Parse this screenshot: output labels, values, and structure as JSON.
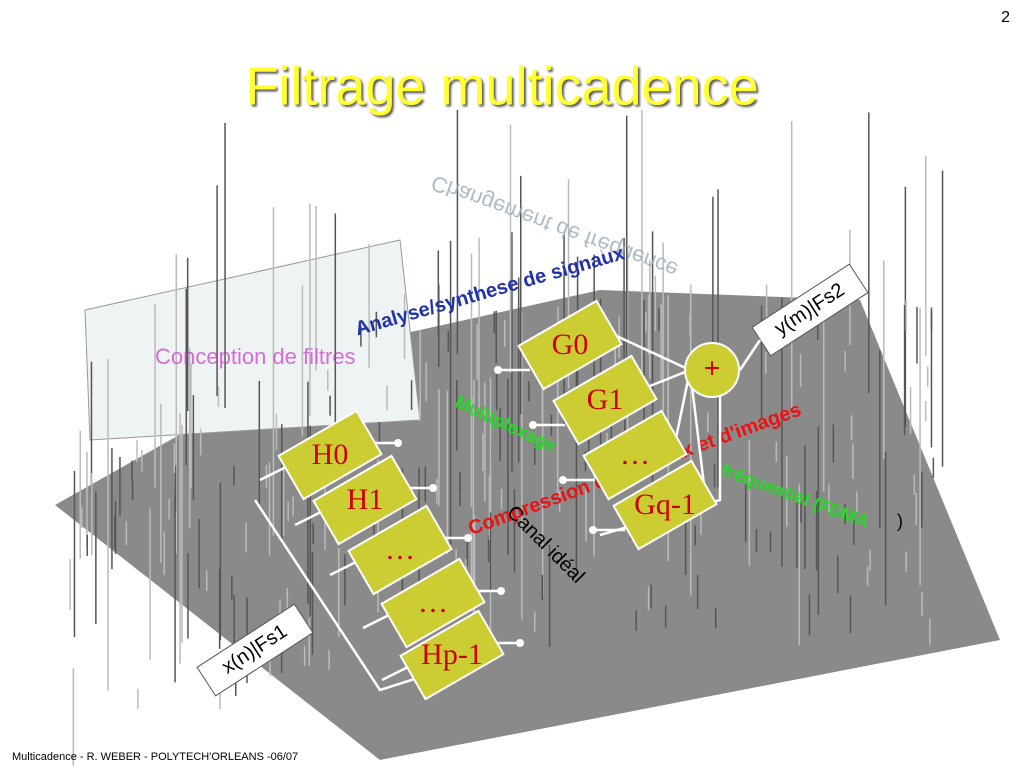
{
  "page_number": "2",
  "title": "Filtrage multicadence",
  "annotations": {
    "mirrored": "Changement de fréquence",
    "filter_design": "Conception de filtres",
    "analysis_synthesis": "Analyse/synthese de signaux",
    "multiplexing": "Multiplexage",
    "fdma": "fréquentiel (FDMA",
    "fdma_close": ")",
    "compression": "Compression de signaux et d'images",
    "ideal_channel": "Canal idéal"
  },
  "analysis_filters": [
    "H0",
    "H1",
    "…",
    "…",
    "Hp-1"
  ],
  "synthesis_filters": [
    "G0",
    "G1",
    "…",
    "Gq-1"
  ],
  "adder": "+",
  "input_label": "x(n)|Fs1",
  "output_label": "y(m)|Fs2",
  "footer": "Multicadence - R. WEBER - POLYTECH'ORLEANS -06/07"
}
